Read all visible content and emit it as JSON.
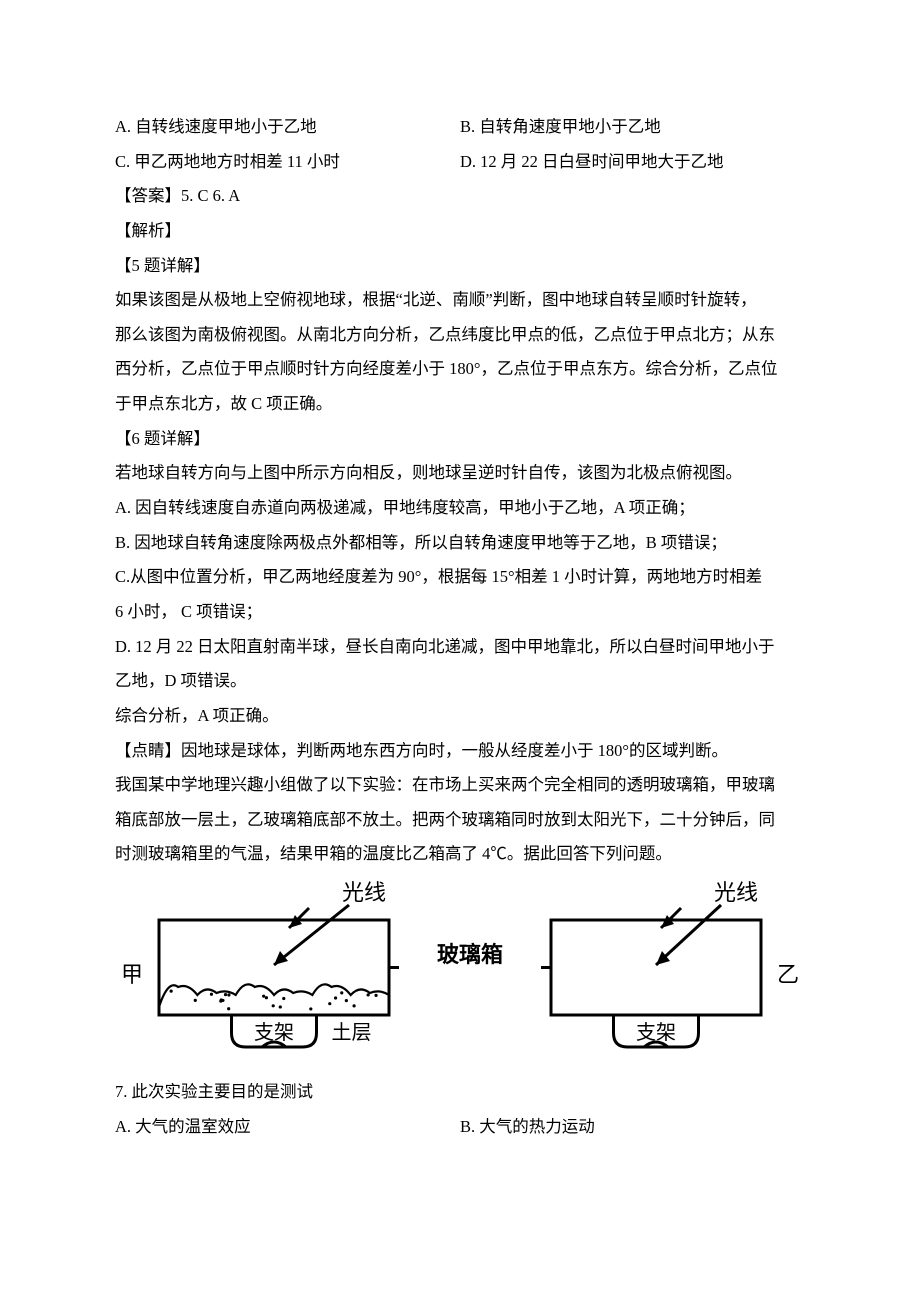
{
  "options_q_prev": {
    "A": "A. 自转线速度甲地小于乙地",
    "B": "B. 自转角速度甲地小于乙地",
    "C": "C. 甲乙两地地方时相差 11 小时",
    "D": "D. 12 月 22 日白昼时间甲地大于乙地"
  },
  "answer_line": "【答案】5. C    6. A",
  "analysis_header": "【解析】",
  "q5_header": "【5 题详解】",
  "q5_body": [
    "如果该图是从极地上空俯视地球，根据“北逆、南顺”判断，图中地球自转呈顺时针旋转，",
    "那么该图为南极俯视图。从南北方向分析，乙点纬度比甲点的低，乙点位于甲点北方；从东",
    "西分析，乙点位于甲点顺时针方向经度差小于 180°，乙点位于甲点东方。综合分析，乙点位",
    "于甲点东北方，故 C 项正确。"
  ],
  "q6_header": "【6 题详解】",
  "q6_body": [
    "若地球自转方向与上图中所示方向相反，则地球呈逆时针自传，该图为北极点俯视图。",
    "A. 因自转线速度自赤道向两极递减，甲地纬度较高，甲地小于乙地，A 项正确；",
    "B. 因地球自转角速度除两极点外都相等，所以自转角速度甲地等于乙地，B 项错误；",
    "C.从图中位置分析，甲乙两地经度差为 90°，根据每 15°相差 1 小时计算，两地地方时相差",
    "6 小时，     C 项错误；",
    "D. 12 月 22 日太阳直射南半球，昼长自南向北递减，图中甲地靠北，所以白昼时间甲地小于",
    "乙地，D 项错误。",
    "综合分析，A 项正确。"
  ],
  "tip_header": "【点睛】因地球是球体，判断两地东西方向时，一般从经度差小于 180°的区域判断。",
  "experiment_body": [
    "我国某中学地理兴趣小组做了以下实验：在市场上买来两个完全相同的透明玻璃箱，甲玻璃",
    "箱底部放一层土，乙玻璃箱底部不放土。把两个玻璃箱同时放到太阳光下，二十分钟后，同",
    "时测玻璃箱里的气温，结果甲箱的温度比乙箱高了 4℃。据此回答下列问题。"
  ],
  "diagram": {
    "left_label": "甲",
    "right_label": "乙",
    "center_label": "玻璃箱",
    "light_label": "光线",
    "stand_label": "支架",
    "soil_label": "土层",
    "stroke": "#000000",
    "stroke_width": 3,
    "font": "22px SimSun"
  },
  "q7_stem": "7. 此次实验主要目的是测试",
  "q7_options": {
    "A": "A. 大气的温室效应",
    "B": "B. 大气的热力运动"
  }
}
